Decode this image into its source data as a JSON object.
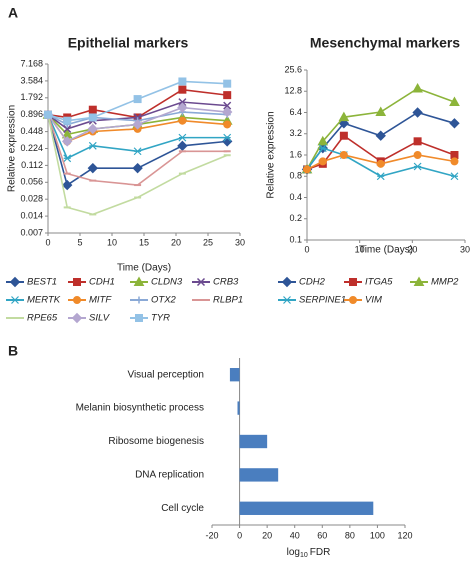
{
  "chart_data": [
    {
      "type": "line",
      "panel": "A",
      "title": "Epithelial markers",
      "xlabel": "Time (Days)",
      "ylabel": "Relative expression",
      "yscale": "log",
      "x": [
        0,
        3,
        7,
        14,
        21,
        28
      ],
      "xlim": [
        0,
        30
      ],
      "xticks": [
        0,
        5,
        10,
        15,
        20,
        25,
        30
      ],
      "ylim": [
        0.007,
        7.168
      ],
      "yticks": [
        0.007,
        0.014,
        0.028,
        0.056,
        0.112,
        0.224,
        0.448,
        0.896,
        1.792,
        3.584,
        7.168
      ],
      "series": [
        {
          "name": "BEST1",
          "color": "#2e5597",
          "marker": "diamond",
          "values": [
            0.896,
            0.05,
            0.1,
            0.1,
            0.25,
            0.3
          ]
        },
        {
          "name": "CDH1",
          "color": "#be2f2b",
          "marker": "square",
          "values": [
            0.896,
            0.8,
            1.1,
            0.8,
            2.5,
            2.0
          ]
        },
        {
          "name": "CLDN3",
          "color": "#8cb43a",
          "marker": "triangle",
          "values": [
            0.896,
            0.4,
            0.5,
            0.6,
            0.8,
            0.7
          ]
        },
        {
          "name": "CRB3",
          "color": "#6b4a8f",
          "marker": "x",
          "values": [
            0.896,
            0.5,
            0.7,
            0.8,
            1.5,
            1.3
          ]
        },
        {
          "name": "MERTK",
          "color": "#31a5c4",
          "marker": "star",
          "values": [
            0.896,
            0.15,
            0.25,
            0.2,
            0.35,
            0.35
          ]
        },
        {
          "name": "MITF",
          "color": "#f08a2a",
          "marker": "circle",
          "values": [
            0.896,
            0.3,
            0.45,
            0.5,
            0.7,
            0.6
          ]
        },
        {
          "name": "OTX2",
          "color": "#8aa9d6",
          "marker": "plus",
          "values": [
            0.896,
            0.6,
            0.8,
            0.7,
            1.0,
            0.9
          ]
        },
        {
          "name": "RLBP1",
          "color": "#d99595",
          "marker": "dash",
          "values": [
            0.896,
            0.08,
            0.06,
            0.05,
            0.2,
            0.2
          ]
        },
        {
          "name": "RPE65",
          "color": "#c2dba0",
          "marker": "dash",
          "values": [
            0.896,
            0.02,
            0.015,
            0.03,
            0.08,
            0.17
          ]
        },
        {
          "name": "SILV",
          "color": "#b4a7d0",
          "marker": "diamond",
          "values": [
            0.896,
            0.3,
            0.5,
            0.6,
            1.2,
            1.0
          ]
        },
        {
          "name": "TYR",
          "color": "#93c2e6",
          "marker": "square",
          "values": [
            0.896,
            0.7,
            0.8,
            1.7,
            3.5,
            3.2
          ]
        }
      ]
    },
    {
      "type": "line",
      "title": "Mesenchymal markers",
      "xlabel": "Time (Days)",
      "ylabel": "Relative expression",
      "yscale": "log",
      "x": [
        0,
        3,
        7,
        14,
        21,
        28
      ],
      "xlim": [
        0,
        30
      ],
      "xticks": [
        0,
        10,
        20,
        30
      ],
      "ylim": [
        0.1,
        25.6
      ],
      "yticks": [
        0.1,
        0.2,
        0.4,
        0.8,
        1.6,
        3.2,
        6.4,
        12.8,
        25.6
      ],
      "series": [
        {
          "name": "CDH2",
          "color": "#2e5597",
          "marker": "diamond",
          "values": [
            1,
            2,
            4.5,
            3,
            6.4,
            4.5
          ]
        },
        {
          "name": "ITGA5",
          "color": "#be2f2b",
          "marker": "square",
          "values": [
            1,
            1.2,
            3,
            1.3,
            2.5,
            1.6
          ]
        },
        {
          "name": "MMP2",
          "color": "#8cb43a",
          "marker": "triangle",
          "values": [
            1,
            2.5,
            5.5,
            6.5,
            14,
            9
          ]
        },
        {
          "name": "SERPINE1",
          "color": "#31a5c4",
          "marker": "star",
          "values": [
            1,
            2,
            1.6,
            0.8,
            1.1,
            0.8
          ]
        },
        {
          "name": "VIM",
          "color": "#f08a2a",
          "marker": "circle",
          "values": [
            1,
            1.3,
            1.6,
            1.2,
            1.6,
            1.3
          ]
        }
      ]
    },
    {
      "type": "barh",
      "panel": "B",
      "xlabel": [
        "log",
        "10",
        "FDR"
      ],
      "color": "#4a7ebf",
      "categories": [
        "Visual perception",
        "Melanin biosynthetic process",
        "Ribosome biogenesis",
        "DNA replication",
        "Cell cycle"
      ],
      "values": [
        -7,
        -1.5,
        20,
        28,
        97
      ],
      "xlim": [
        -20,
        120
      ],
      "xticks": [
        -20,
        0,
        20,
        40,
        60,
        80,
        100,
        120
      ]
    }
  ]
}
